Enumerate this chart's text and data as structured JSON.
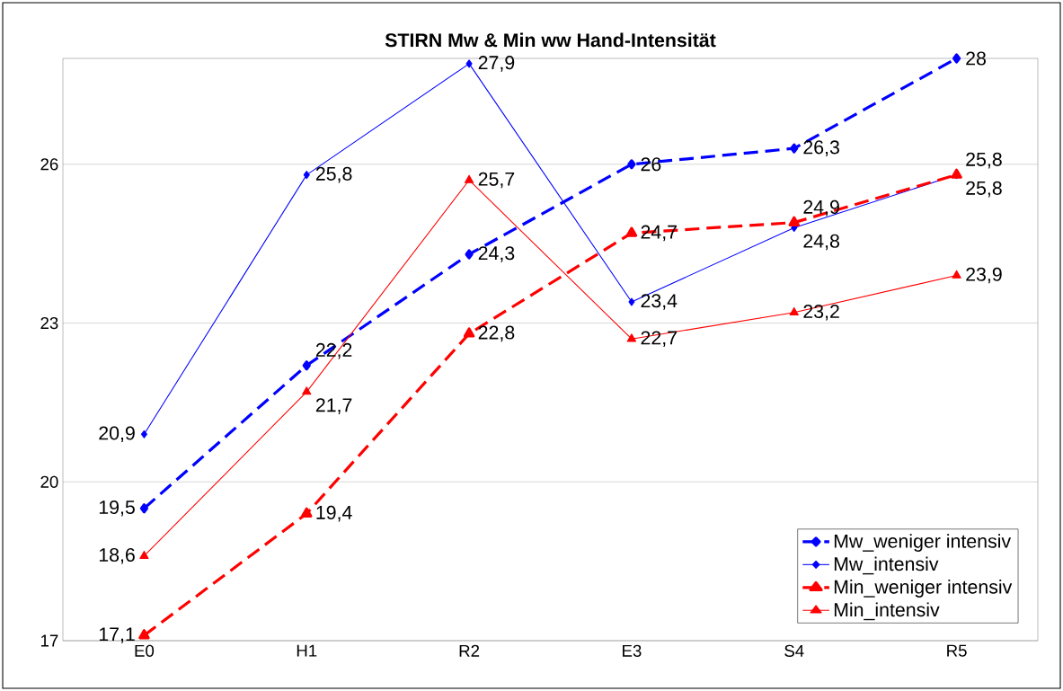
{
  "chart_data": {
    "type": "line",
    "title": "STIRN  Mw & Min  ww  Hand-Intensität",
    "categories": [
      "E0",
      "H1",
      "R2",
      "E3",
      "S4",
      "R5"
    ],
    "ylim": [
      17,
      28
    ],
    "yticks": [
      17,
      20,
      23,
      26
    ],
    "grid": "y",
    "legend": "bottom right",
    "series": [
      {
        "name": "Mw_weniger intensiv",
        "color": "#0000ff",
        "marker": "diamond",
        "line_style": "dashed",
        "values": [
          19.5,
          22.2,
          24.3,
          26,
          26.3,
          28
        ],
        "value_labels": [
          "19,5",
          "22,2",
          "24,3",
          "26",
          "26,3",
          "28"
        ]
      },
      {
        "name": "Mw_intensiv",
        "color": "#0000ff",
        "marker": "diamond",
        "line_style": "solid",
        "values": [
          20.9,
          25.8,
          27.9,
          23.4,
          24.8,
          25.8
        ],
        "value_labels": [
          "20,9",
          "25,8",
          "27,9",
          "23,4",
          "24,8",
          "25,8"
        ]
      },
      {
        "name": "Min_weniger intensiv",
        "color": "#ff0000",
        "marker": "triangle",
        "line_style": "dashed",
        "values": [
          17.1,
          19.4,
          22.8,
          24.7,
          24.9,
          25.8
        ],
        "value_labels": [
          "17,1",
          "19,4",
          "22,8",
          "24,7",
          "24,9",
          "25,8"
        ]
      },
      {
        "name": "Min_intensiv",
        "color": "#ff0000",
        "marker": "triangle",
        "line_style": "solid",
        "values": [
          18.6,
          21.7,
          25.7,
          22.7,
          23.2,
          23.9
        ],
        "value_labels": [
          "18,6",
          "21,7",
          "25,7",
          "22,7",
          "23,2",
          "23,9"
        ]
      }
    ]
  }
}
